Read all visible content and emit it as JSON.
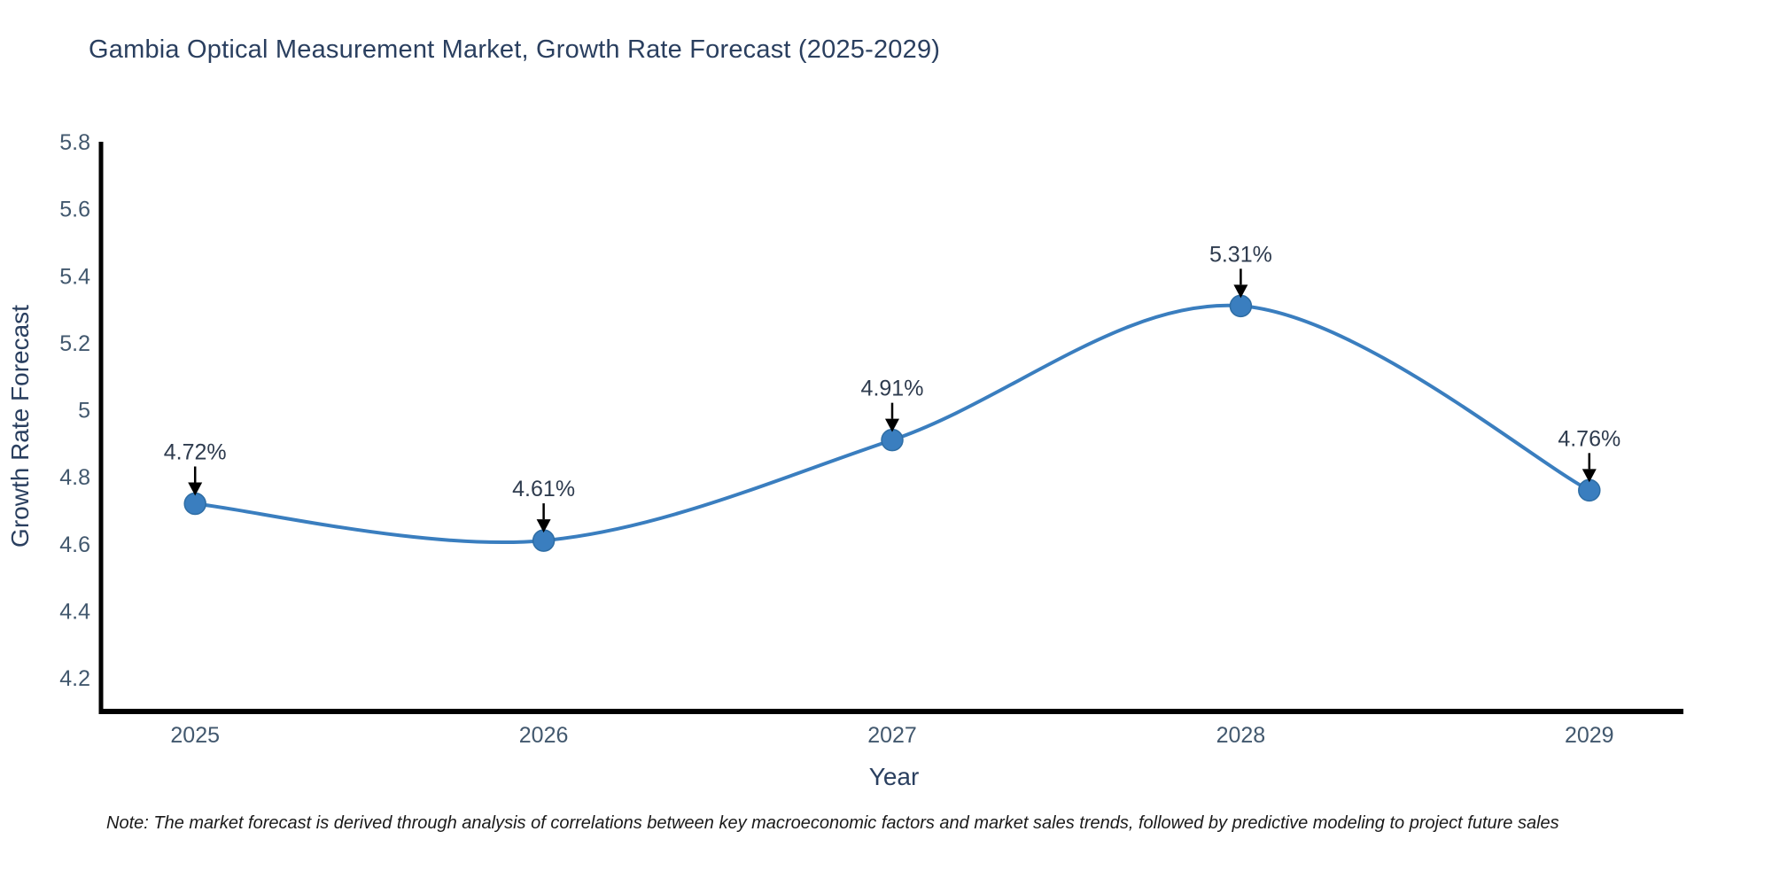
{
  "title": "Gambia Optical Measurement Market, Growth Rate Forecast (2025-2029)",
  "note": "Note: The market forecast is derived through analysis of correlations between key macroeconomic factors and market sales trends, followed by predictive modeling to project future sales",
  "chart_data": {
    "type": "line",
    "title": "Gambia Optical Measurement Market, Growth Rate Forecast (2025-2029)",
    "xlabel": "Year",
    "ylabel": "Growth Rate Forecast",
    "x": [
      2025,
      2026,
      2027,
      2028,
      2029
    ],
    "xticks": [
      "2025",
      "2026",
      "2027",
      "2028",
      "2029"
    ],
    "series": [
      {
        "name": "Growth Rate Forecast",
        "values": [
          4.72,
          4.61,
          4.91,
          5.31,
          4.76
        ]
      }
    ],
    "point_labels": [
      "4.72%",
      "4.61%",
      "4.91%",
      "5.31%",
      "4.76%"
    ],
    "yticks": [
      "4.2",
      "4.4",
      "4.6",
      "4.8",
      "5",
      "5.2",
      "5.4",
      "5.6",
      "5.8"
    ],
    "ylim": [
      4.1,
      5.8
    ],
    "xlim": [
      2024.73,
      2029.27
    ],
    "line_shape": "spline",
    "grid": false,
    "legend_position": "none",
    "colors": {
      "line": "#3a7ebf",
      "marker": "#3a7ebf",
      "marker_edge": "#2e6da4",
      "arrow": "#000000",
      "spine": "#000000",
      "title_text": "#2a3f5f",
      "axis_title_text": "#2a3f5f",
      "tick_text": "#42586e",
      "annotation_text": "#2e3b4e",
      "note_text": "#1a1a1a"
    }
  }
}
